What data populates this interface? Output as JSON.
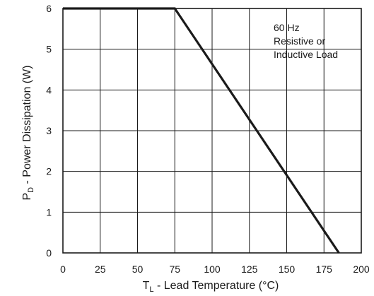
{
  "chart_data": {
    "type": "line",
    "series": [
      {
        "x": [
          0,
          75,
          185
        ],
        "y": [
          6,
          6,
          0
        ]
      }
    ],
    "xlim": [
      0,
      200
    ],
    "ylim": [
      0,
      6
    ],
    "xticks": [
      0,
      25,
      50,
      75,
      100,
      125,
      150,
      175,
      200
    ],
    "yticks": [
      0,
      1,
      2,
      3,
      4,
      5,
      6
    ],
    "xlabel": {
      "main": "T",
      "sub": "L",
      "rest": " - Lead Temperature (°C)"
    },
    "ylabel": {
      "main": "P",
      "sub": "D",
      "rest": " - Power Dissipation (W)"
    },
    "annotation": [
      "60 Hz",
      "Resistive or",
      "Inductive Load"
    ],
    "grid": true,
    "colors": {
      "line": "#1a1a1a",
      "grid": "#1a1a1a",
      "background": "#ffffff"
    }
  }
}
